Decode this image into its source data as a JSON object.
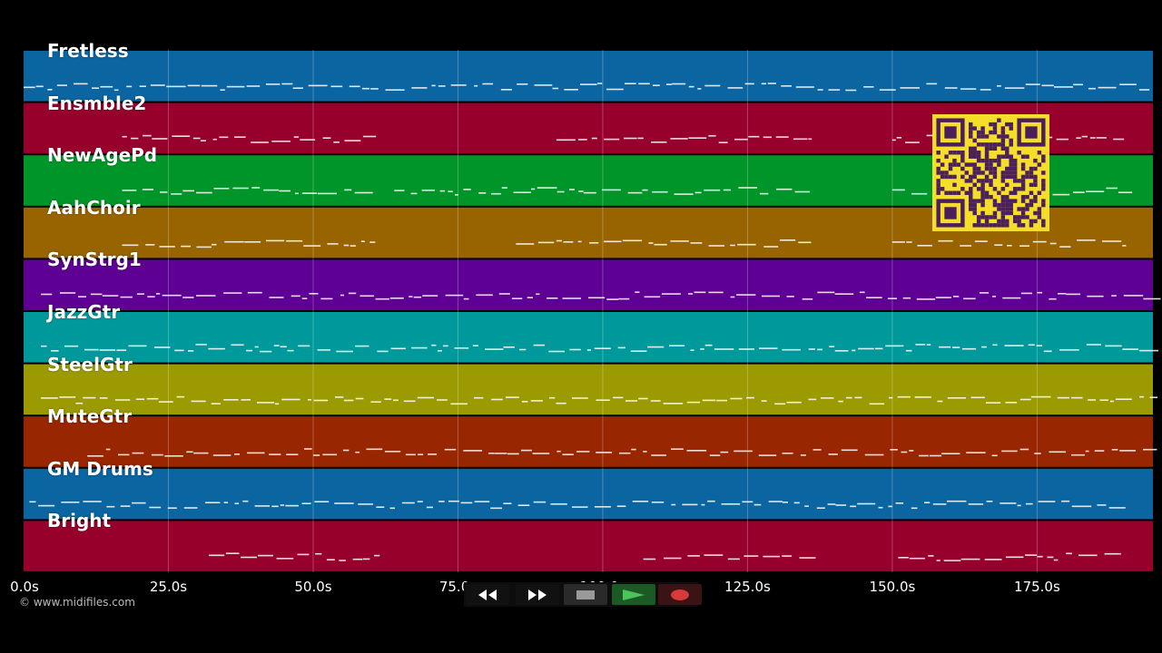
{
  "tracks": [
    {
      "name": "Fretless",
      "color": "#0b65a1"
    },
    {
      "name": "Ensmble2",
      "color": "#98002c"
    },
    {
      "name": "NewAgePd",
      "color": "#009528"
    },
    {
      "name": "AahChoir",
      "color": "#976400"
    },
    {
      "name": "SynStrg1",
      "color": "#5e0093"
    },
    {
      "name": "JazzGtr",
      "color": "#00999b"
    },
    {
      "name": "SteelGtr",
      "color": "#9b9a00"
    },
    {
      "name": "MuteGtr",
      "color": "#982600"
    },
    {
      "name": "GM Drums",
      "color": "#0b65a1"
    },
    {
      "name": "Bright",
      "color": "#98002c"
    }
  ],
  "time_axis": {
    "ticks": [
      "0.0s",
      "25.0s",
      "50.0s",
      "75.0s",
      "100.0s",
      "125.0s",
      "150.0s",
      "175.0s"
    ],
    "tick_seconds": [
      0,
      25,
      50,
      75,
      100,
      125,
      150,
      175
    ],
    "end_seconds": 195
  },
  "copyright": "© www.midifiles.com",
  "transport": {
    "rewind": "rewind-icon",
    "fast_forward": "fast-forward-icon",
    "stop": "stop-icon",
    "play": "play-icon",
    "record": "record-icon"
  },
  "qr_code": "qr-code",
  "colors": {
    "background": "#000000",
    "gridline": "#ffffff",
    "note": "#ffffff"
  }
}
